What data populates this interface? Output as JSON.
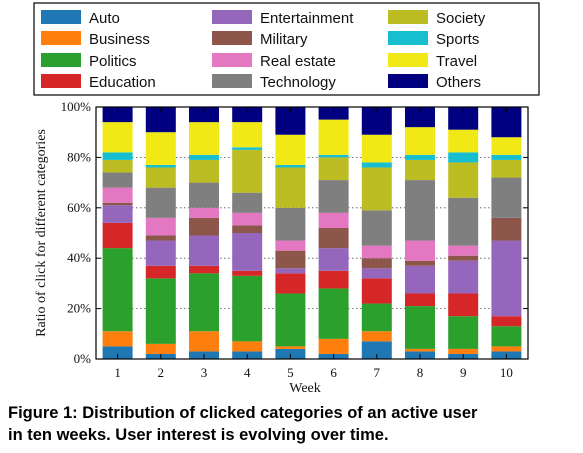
{
  "caption": {
    "line1": "Figure 1: Distribution of clicked categories of an active user",
    "line2": "in ten weeks. User interest is evolving over time."
  },
  "chart_data": {
    "type": "bar",
    "stacked": true,
    "xlabel": "Week",
    "ylabel": "Ratio of click for different categories",
    "categories": [
      "1",
      "2",
      "3",
      "4",
      "5",
      "6",
      "7",
      "8",
      "9",
      "10"
    ],
    "ylim": [
      0,
      100
    ],
    "yticks": [
      "0%",
      "20%",
      "40%",
      "60%",
      "80%",
      "100%"
    ],
    "legend_position": "top, 3 columns",
    "series": [
      {
        "name": "Auto",
        "color": "#1f77b4",
        "values": [
          5,
          2,
          3,
          3,
          4,
          2,
          7,
          3,
          2,
          3
        ]
      },
      {
        "name": "Business",
        "color": "#ff7f0e",
        "values": [
          6,
          4,
          8,
          4,
          1,
          6,
          4,
          1,
          2,
          2
        ]
      },
      {
        "name": "Politics",
        "color": "#2ca02c",
        "values": [
          33,
          26,
          23,
          26,
          21,
          20,
          11,
          17,
          13,
          8
        ]
      },
      {
        "name": "Education",
        "color": "#d62728",
        "values": [
          10,
          5,
          3,
          2,
          8,
          7,
          10,
          5,
          9,
          4
        ]
      },
      {
        "name": "Entertainment",
        "color": "#9467bd",
        "values": [
          7,
          10,
          12,
          15,
          2,
          9,
          4,
          11,
          13,
          30
        ]
      },
      {
        "name": "Military",
        "color": "#8c564b",
        "values": [
          1,
          2,
          7,
          3,
          7,
          8,
          4,
          2,
          2,
          9
        ]
      },
      {
        "name": "Real estate",
        "color": "#e377c2",
        "values": [
          6,
          7,
          4,
          5,
          4,
          6,
          5,
          8,
          4,
          0
        ]
      },
      {
        "name": "Technology",
        "color": "#7f7f7f",
        "values": [
          6,
          12,
          10,
          8,
          13,
          13,
          14,
          24,
          19,
          16
        ]
      },
      {
        "name": "Society",
        "color": "#bcbd22",
        "values": [
          5,
          8,
          9,
          17,
          16,
          9,
          17,
          8,
          14,
          7
        ]
      },
      {
        "name": "Sports",
        "color": "#17becf",
        "values": [
          3,
          1,
          2,
          1,
          1,
          1,
          2,
          2,
          4,
          2
        ]
      },
      {
        "name": "Travel",
        "color": "#f0e916",
        "values": [
          12,
          13,
          13,
          10,
          12,
          14,
          11,
          11,
          9,
          7
        ]
      },
      {
        "name": "Others",
        "color": "#000080",
        "values": [
          6,
          10,
          6,
          6,
          11,
          5,
          11,
          8,
          9,
          12
        ]
      }
    ]
  }
}
